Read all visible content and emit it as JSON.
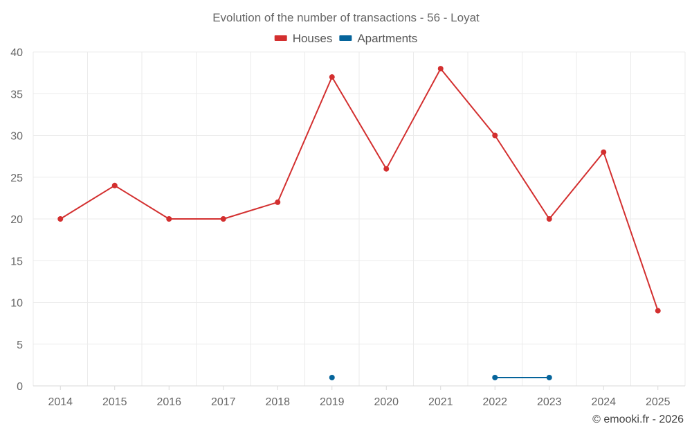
{
  "chart_data": {
    "type": "line",
    "title": "Evolution of the number of transactions - 56 - Loyat",
    "x": [
      "2014",
      "2015",
      "2016",
      "2017",
      "2018",
      "2019",
      "2020",
      "2021",
      "2022",
      "2023",
      "2024",
      "2025"
    ],
    "series": [
      {
        "name": "Houses",
        "color": "#d32f2f",
        "values": [
          20,
          24,
          20,
          20,
          22,
          37,
          26,
          38,
          30,
          20,
          28,
          9
        ]
      },
      {
        "name": "Apartments",
        "color": "#05649b",
        "values": [
          null,
          null,
          null,
          null,
          null,
          1,
          null,
          null,
          1,
          1,
          null,
          null
        ]
      }
    ],
    "ylim": [
      0,
      40
    ],
    "yticks": [
      0,
      5,
      10,
      15,
      20,
      25,
      30,
      35,
      40
    ],
    "grid": true,
    "legend_position": "top-center"
  },
  "credit": "© emooki.fr - 2026"
}
